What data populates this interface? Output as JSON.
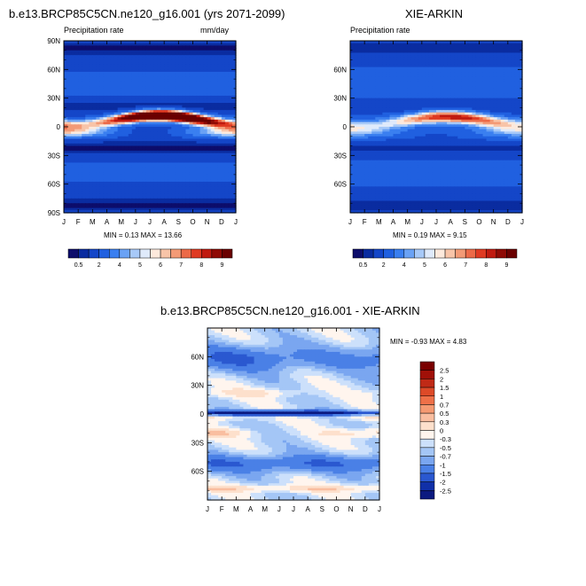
{
  "chart_data": [
    {
      "type": "heatmap",
      "title": "b.e13.BRCP85C5CN.ne120_g16.001 (yrs 2071-2099)",
      "subtitle_left": "Precipitation rate",
      "subtitle_right": "mm/day",
      "x_ticks": [
        "J",
        "F",
        "M",
        "A",
        "M",
        "J",
        "J",
        "A",
        "S",
        "O",
        "N",
        "D",
        "J"
      ],
      "y_ticks": [
        "90N",
        "60N",
        "30N",
        "0",
        "30S",
        "60S",
        "90S"
      ],
      "y_tick_values": [
        90,
        60,
        30,
        0,
        -30,
        -60,
        -90
      ],
      "ylim": [
        -90,
        90
      ],
      "stats_text": "MIN =  0.13 MAX =  13.66",
      "min": 0.13,
      "max": 13.66,
      "colorbar_orientation": "horizontal",
      "colorbar_labels": [
        "0.5",
        "2",
        "4",
        "5",
        "6",
        "7",
        "8",
        "9"
      ]
    },
    {
      "type": "heatmap",
      "title": "XIE-ARKIN",
      "subtitle_left": "Precipitation rate",
      "x_ticks": [
        "J",
        "F",
        "M",
        "A",
        "M",
        "J",
        "J",
        "A",
        "S",
        "O",
        "N",
        "D",
        "J"
      ],
      "y_ticks": [
        "60N",
        "30N",
        "0",
        "30S",
        "60S"
      ],
      "y_tick_values": [
        60,
        30,
        0,
        -30,
        -60
      ],
      "ylim": [
        -90,
        90
      ],
      "stats_text": "MIN =  0.19 MAX =  9.15",
      "min": 0.19,
      "max": 9.15,
      "colorbar_orientation": "horizontal",
      "colorbar_labels": [
        "0.5",
        "2",
        "4",
        "5",
        "6",
        "7",
        "8",
        "9"
      ]
    },
    {
      "type": "heatmap",
      "title": "b.e13.BRCP85C5CN.ne120_g16.001 - XIE-ARKIN",
      "x_ticks": [
        "J",
        "F",
        "M",
        "A",
        "M",
        "J",
        "J",
        "A",
        "S",
        "O",
        "N",
        "D",
        "J"
      ],
      "y_ticks": [
        "60N",
        "30N",
        "0",
        "30S",
        "60S"
      ],
      "y_tick_values": [
        60,
        30,
        0,
        -30,
        -60
      ],
      "ylim": [
        -90,
        90
      ],
      "stats_text": "MIN = -0.93 MAX =  4.83",
      "min": -0.93,
      "max": 4.83,
      "colorbar_orientation": "vertical",
      "colorbar_labels": [
        "2.5",
        "2",
        "1.5",
        "1",
        "0.7",
        "0.5",
        "0.3",
        "0",
        "-0.3",
        "-0.5",
        "-0.7",
        "-1",
        "-1.5",
        "-2",
        "-2.5"
      ]
    }
  ],
  "palettes": {
    "precip": [
      "#0d0d6b",
      "#0a2ca0",
      "#1446c8",
      "#2060e0",
      "#3a7ff0",
      "#6aa2f5",
      "#a7c9f8",
      "#dfeafb",
      "#fde9dc",
      "#f8c4a8",
      "#f39a76",
      "#ec6a48",
      "#df3a22",
      "#c01a10",
      "#8f0a05",
      "#6a0000"
    ],
    "diff": [
      "#7a0000",
      "#a01008",
      "#c02a16",
      "#dd4a28",
      "#ee7048",
      "#f59a72",
      "#f9bea0",
      "#fde0cc",
      "#fff5ee",
      "#cce0fb",
      "#a4c6f6",
      "#7aa6f0",
      "#4a80e6",
      "#2a58d0",
      "#1030a8",
      "#0b1a80"
    ]
  }
}
